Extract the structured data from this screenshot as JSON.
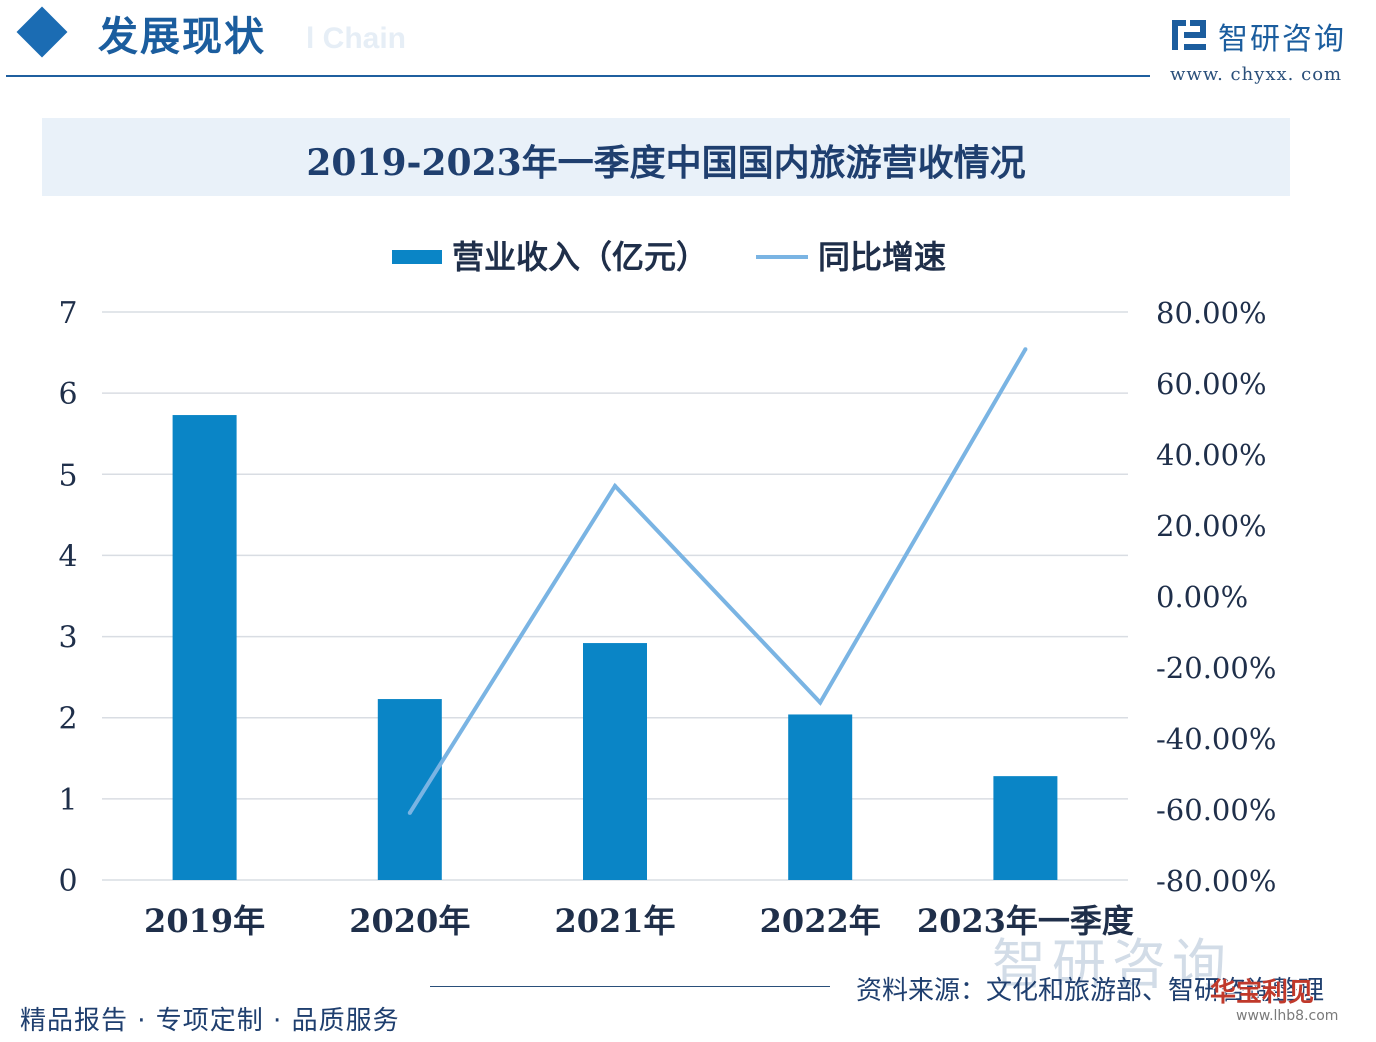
{
  "header": {
    "section_title": "发展现状",
    "section_ghost": "l Chain",
    "brand_name": "智研咨询",
    "brand_url": "www. chyxx. com"
  },
  "colors": {
    "bar": "#0a85c6",
    "line": "#7ab4e3",
    "grid": "#d9dde3",
    "text": "#1f2f4a"
  },
  "chart_data": {
    "type": "bar",
    "title": "2019-2023年一季度中国国内旅游营收情况",
    "categories": [
      "2019年",
      "2020年",
      "2021年",
      "2022年",
      "2023年一季度"
    ],
    "series": [
      {
        "name": "营业收入（亿元）",
        "type": "bar",
        "axis": "left",
        "values": [
          5.73,
          2.23,
          2.92,
          2.04,
          1.28
        ]
      },
      {
        "name": "同比增速",
        "type": "line",
        "axis": "right",
        "values": [
          null,
          -61.1,
          31.0,
          -30.0,
          69.5
        ]
      }
    ],
    "ylim_left": [
      0,
      7
    ],
    "yticks_left": [
      "0",
      "1",
      "2",
      "3",
      "4",
      "5",
      "6",
      "7"
    ],
    "ylim_right": [
      -80,
      80
    ],
    "yticks_right": [
      "-80.00%",
      "-60.00%",
      "-40.00%",
      "-20.00%",
      "0.00%",
      "20.00%",
      "40.00%",
      "60.00%",
      "80.00%"
    ],
    "grid": true,
    "legend_position": "top"
  },
  "footer": {
    "slogan": "精品报告 · 专项定制 · 品质服务",
    "source": "资料来源：文化和旅游部、智研咨询整理",
    "watermark": "智研咨询",
    "corner_mark": "华宝利见",
    "corner_url": "www.lhb8.com"
  }
}
